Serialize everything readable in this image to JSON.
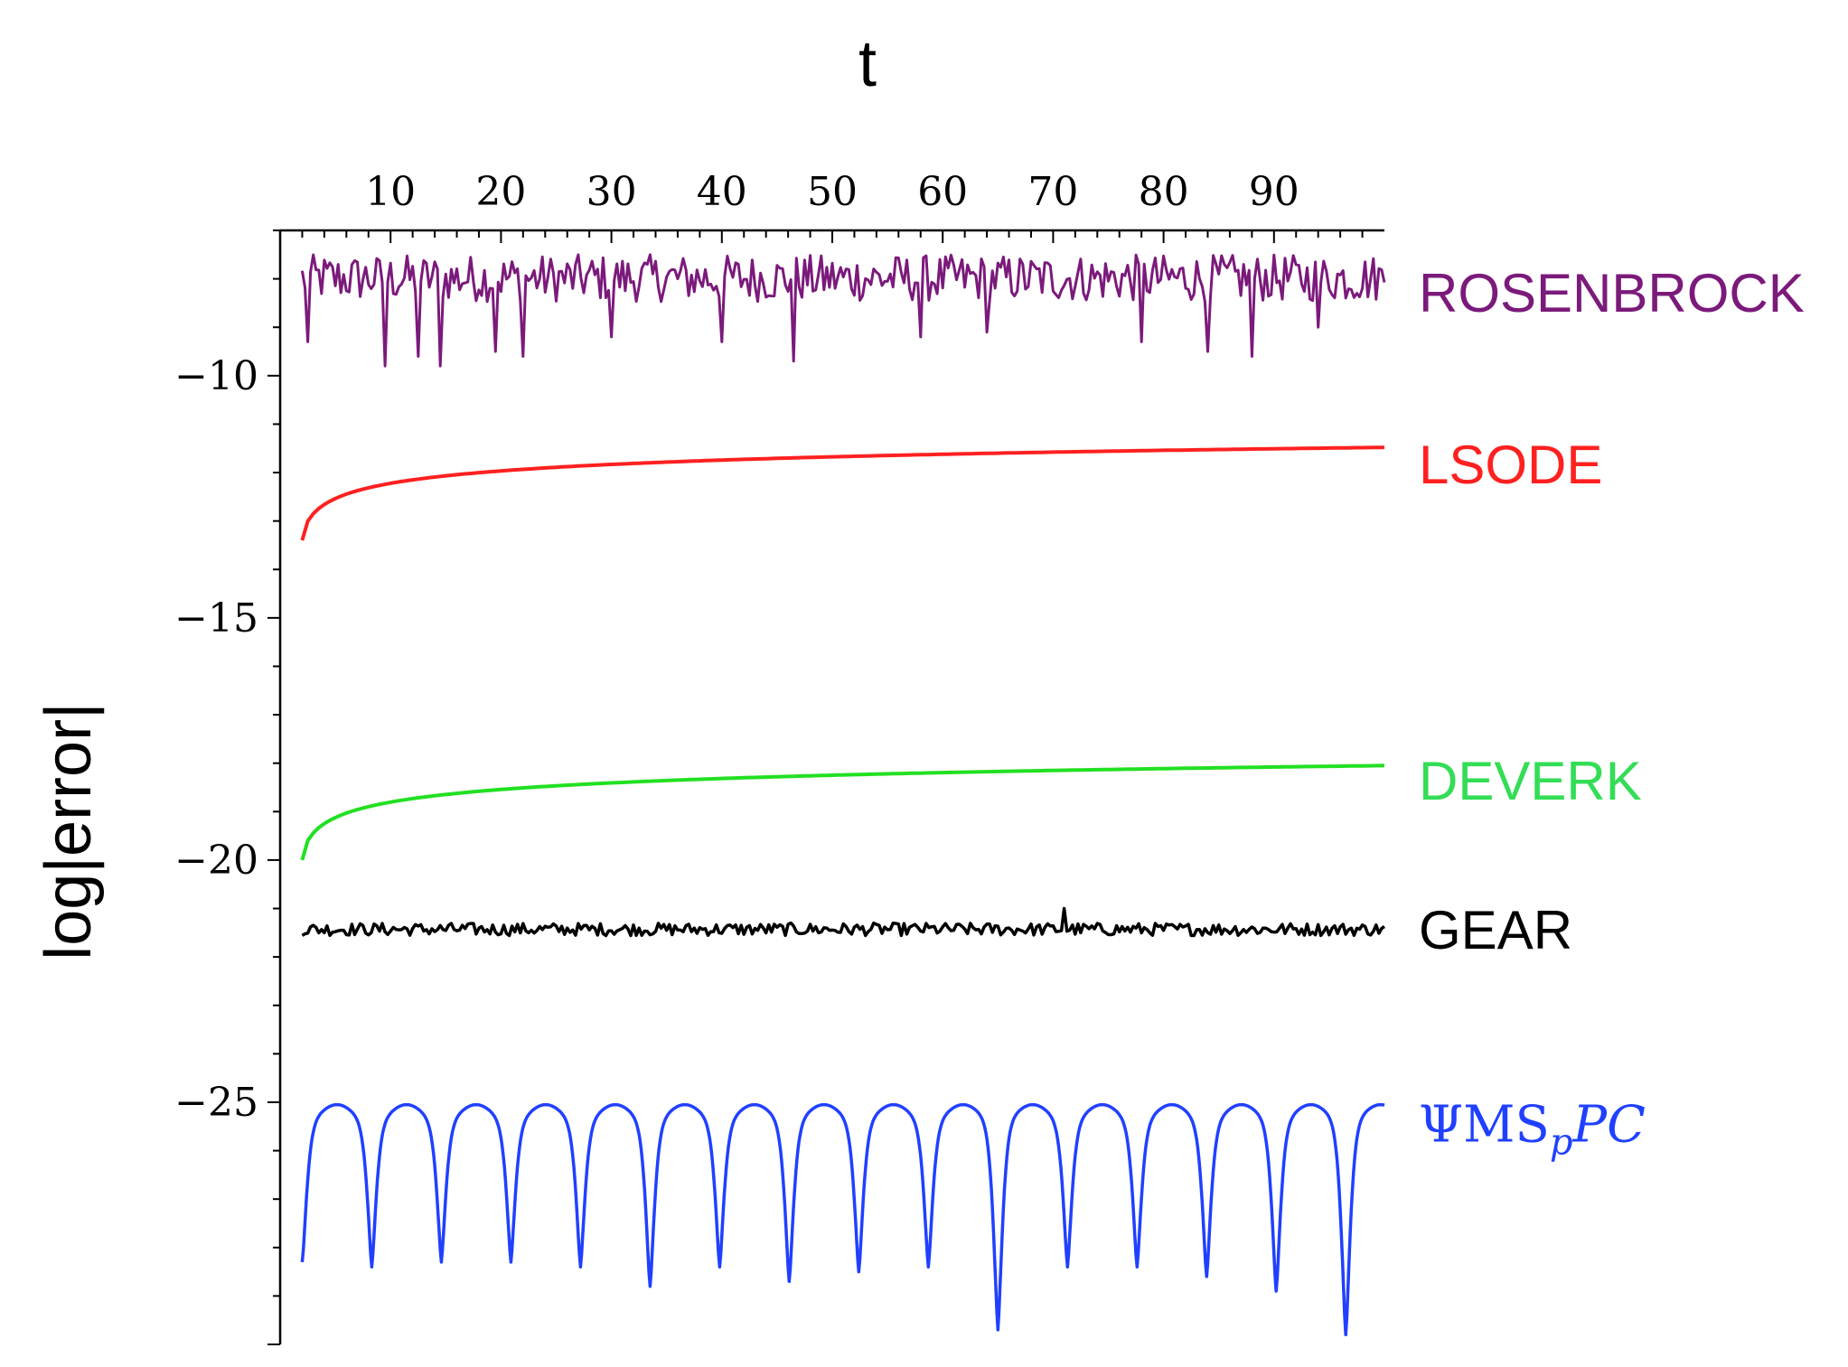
{
  "chart_data": {
    "type": "line",
    "title": "",
    "xlabel": "t",
    "ylabel": "log|error|",
    "xlim": [
      0,
      100
    ],
    "ylim": [
      -30,
      -7
    ],
    "x_ticks": [
      10,
      20,
      30,
      40,
      50,
      60,
      70,
      80,
      90
    ],
    "y_ticks": [
      -10,
      -15,
      -20,
      -25
    ],
    "x_axis_position": "top",
    "grid": false,
    "series": [
      {
        "name": "ROSENBROCK",
        "color": "#7b1a7b",
        "pattern": "noisy",
        "t_start": 2,
        "t_end": 100,
        "baseline": -8.0,
        "band": [
          -7.5,
          -9.0
        ],
        "spikes": [
          {
            "t": 2.5,
            "value": -9.3
          },
          {
            "t": 9.5,
            "value": -9.8
          },
          {
            "t": 12.5,
            "value": -9.6
          },
          {
            "t": 14.5,
            "value": -9.8
          },
          {
            "t": 19.5,
            "value": -9.5
          },
          {
            "t": 22,
            "value": -9.6
          },
          {
            "t": 30,
            "value": -9.2
          },
          {
            "t": 40,
            "value": -9.3
          },
          {
            "t": 46.5,
            "value": -9.7
          },
          {
            "t": 58,
            "value": -9.2
          },
          {
            "t": 64,
            "value": -9.1
          },
          {
            "t": 78,
            "value": -9.3
          },
          {
            "t": 84,
            "value": -9.5
          },
          {
            "t": 88,
            "value": -9.6
          },
          {
            "t": 94,
            "value": -9.0
          }
        ],
        "label": "ROSENBROCK"
      },
      {
        "name": "LSODE",
        "color": "#ff2020",
        "pattern": "smooth",
        "x": [
          2,
          5,
          10,
          20,
          30,
          40,
          50,
          60,
          70,
          80,
          90,
          100
        ],
        "y": [
          -13.4,
          -12.9,
          -12.5,
          -12.15,
          -11.95,
          -11.82,
          -11.74,
          -11.67,
          -11.61,
          -11.56,
          -11.52,
          -11.48
        ],
        "label": "LSODE"
      },
      {
        "name": "DEVERK",
        "color": "#22e022",
        "pattern": "smooth",
        "x": [
          2,
          5,
          10,
          20,
          30,
          40,
          50,
          60,
          70,
          80,
          90,
          100
        ],
        "y": [
          -20.0,
          -19.5,
          -19.1,
          -18.8,
          -18.6,
          -18.48,
          -18.38,
          -18.3,
          -18.22,
          -18.16,
          -18.1,
          -18.05
        ],
        "label": "DEVERK"
      },
      {
        "name": "GEAR",
        "color": "#000000",
        "pattern": "noisy",
        "t_start": 2,
        "t_end": 100,
        "baseline": -21.65,
        "band": [
          -21.3,
          -21.7
        ],
        "spikes": [
          {
            "t": 71,
            "value": -21.0
          }
        ],
        "label": "GEAR"
      },
      {
        "name": "ΨMS_pPC",
        "color": "#2040ff",
        "pattern": "periodic-dips",
        "t_start": 2,
        "t_end": 100,
        "plateau": -25.4,
        "dips": [
          {
            "t": 2,
            "value": -28.3
          },
          {
            "t": 8.3,
            "value": -28.4
          },
          {
            "t": 14.6,
            "value": -28.3
          },
          {
            "t": 20.9,
            "value": -28.3
          },
          {
            "t": 27.2,
            "value": -28.4
          },
          {
            "t": 33.5,
            "value": -28.8
          },
          {
            "t": 39.8,
            "value": -28.4
          },
          {
            "t": 46.1,
            "value": -28.7
          },
          {
            "t": 52.4,
            "value": -28.5
          },
          {
            "t": 58.7,
            "value": -28.4
          },
          {
            "t": 65,
            "value": -29.7
          },
          {
            "t": 71.3,
            "value": -28.4
          },
          {
            "t": 77.6,
            "value": -28.4
          },
          {
            "t": 83.9,
            "value": -28.6
          },
          {
            "t": 90.2,
            "value": -28.9
          },
          {
            "t": 96.5,
            "value": -29.8
          }
        ],
        "label": "ΨMS",
        "label_sub": "p",
        "label_suffix": "PC"
      }
    ]
  }
}
